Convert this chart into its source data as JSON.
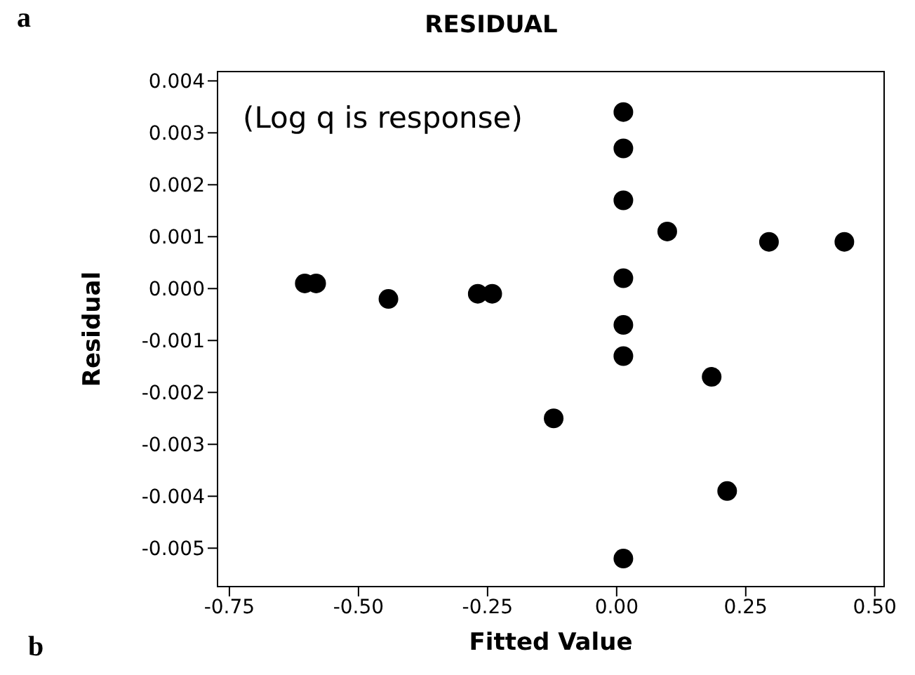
{
  "chart_data": {
    "type": "scatter",
    "title": "RESIDUAL",
    "xlabel": "Fitted Value",
    "ylabel": "Residual",
    "annotations": [
      "a",
      "(Log q is response)",
      "b"
    ],
    "x": [
      -0.604,
      -0.582,
      -0.442,
      -0.269,
      -0.241,
      -0.122,
      0.013,
      0.013,
      0.013,
      0.013,
      0.013,
      0.013,
      0.013,
      0.098,
      0.184,
      0.214,
      0.295,
      0.441
    ],
    "values": [
      0.0001,
      0.0001,
      -0.0002,
      -0.0001,
      -0.0001,
      -0.0025,
      0.0034,
      0.0027,
      0.0017,
      0.0002,
      -0.0007,
      -0.0013,
      -0.0052,
      0.0011,
      -0.0017,
      -0.0039,
      0.0009,
      0.0009
    ],
    "color": "#000000",
    "marker": "circle",
    "grid": false,
    "legend": false,
    "xlim": [
      -0.773,
      0.518
    ],
    "xticks": [
      {
        "value": -0.75,
        "label": "-0.75"
      },
      {
        "value": -0.5,
        "label": "-0.50"
      },
      {
        "value": -0.25,
        "label": "-0.25"
      },
      {
        "value": 0,
        "label": "0.00"
      },
      {
        "value": 0.25,
        "label": "0.25"
      },
      {
        "value": 0.5,
        "label": "0.50"
      }
    ],
    "ylim": [
      -0.00574,
      0.00418
    ],
    "yticks": [
      {
        "value": 0.004,
        "label": "0.004"
      },
      {
        "value": 0.003,
        "label": "0.003"
      },
      {
        "value": 0.002,
        "label": "0.002"
      },
      {
        "value": 0.001,
        "label": "0.001"
      },
      {
        "value": 0,
        "label": "0.000"
      },
      {
        "value": -0.001,
        "label": "-0.001"
      },
      {
        "value": -0.002,
        "label": "-0.002"
      },
      {
        "value": -0.003,
        "label": "-0.003"
      },
      {
        "value": -0.004,
        "label": "-0.004"
      },
      {
        "value": -0.005,
        "label": "-0.005"
      }
    ]
  }
}
